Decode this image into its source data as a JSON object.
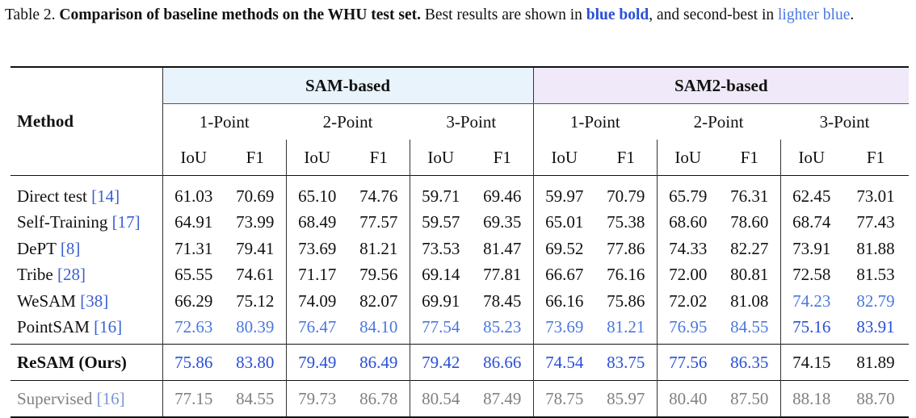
{
  "caption": {
    "prefix": "Table 2.",
    "title": "Comparison of baseline methods on the WHU test set.",
    "text1": "Best results are shown in",
    "best_label": "blue bold",
    "text2": ", and second-best in",
    "second_label": "lighter blue",
    "end": "."
  },
  "table": {
    "method_header": "Method",
    "groups": [
      "SAM-based",
      "SAM2-based"
    ],
    "point_headers": [
      "1-Point",
      "2-Point",
      "3-Point",
      "1-Point",
      "2-Point",
      "3-Point"
    ],
    "metric_headers": [
      "IoU",
      "F1",
      "IoU",
      "F1",
      "IoU",
      "F1",
      "IoU",
      "F1",
      "IoU",
      "F1",
      "IoU",
      "F1"
    ],
    "rows": [
      {
        "name": "Direct test",
        "cite": "[14]",
        "values": [
          "61.03",
          "70.69",
          "65.10",
          "74.76",
          "59.71",
          "69.46",
          "59.97",
          "70.79",
          "65.79",
          "76.31",
          "62.45",
          "73.01"
        ]
      },
      {
        "name": "Self-Training",
        "cite": "[17]",
        "values": [
          "64.91",
          "73.99",
          "68.49",
          "77.57",
          "59.57",
          "69.35",
          "65.01",
          "75.38",
          "68.60",
          "78.60",
          "68.74",
          "77.43"
        ]
      },
      {
        "name": "DePT",
        "cite": "[8]",
        "values": [
          "71.31",
          "79.41",
          "73.69",
          "81.21",
          "73.53",
          "81.47",
          "69.52",
          "77.86",
          "74.33",
          "82.27",
          "73.91",
          "81.88"
        ]
      },
      {
        "name": "Tribe",
        "cite": "[28]",
        "values": [
          "65.55",
          "74.61",
          "71.17",
          "79.56",
          "69.14",
          "77.81",
          "66.67",
          "76.16",
          "72.00",
          "80.81",
          "72.58",
          "81.53"
        ]
      },
      {
        "name": "WeSAM",
        "cite": "[38]",
        "values": [
          "66.29",
          "75.12",
          "74.09",
          "82.07",
          "69.91",
          "78.45",
          "66.16",
          "75.86",
          "72.02",
          "81.08",
          "74.23",
          "82.79"
        ]
      },
      {
        "name": "PointSAM",
        "cite": "[16]",
        "values": [
          "72.63",
          "80.39",
          "76.47",
          "84.10",
          "77.54",
          "85.23",
          "73.69",
          "81.21",
          "76.95",
          "84.55",
          "75.16",
          "83.91"
        ]
      }
    ],
    "ours": {
      "name": "ReSAM (Ours)",
      "values": [
        "75.86",
        "83.80",
        "79.49",
        "86.49",
        "79.42",
        "86.66",
        "74.54",
        "83.75",
        "77.56",
        "86.35",
        "74.15",
        "81.89"
      ]
    },
    "supervised": {
      "name": "Supervised",
      "cite": "[16]",
      "values": [
        "77.15",
        "84.55",
        "79.73",
        "86.78",
        "80.54",
        "87.49",
        "78.75",
        "85.97",
        "80.40",
        "87.50",
        "88.18",
        "88.70"
      ]
    },
    "highlight_colors": {
      "best": "#2a4fd6",
      "second": "#4a78e0",
      "sam_group_bg": "#e8f3fc",
      "sam2_group_bg": "#efe9f9"
    }
  }
}
